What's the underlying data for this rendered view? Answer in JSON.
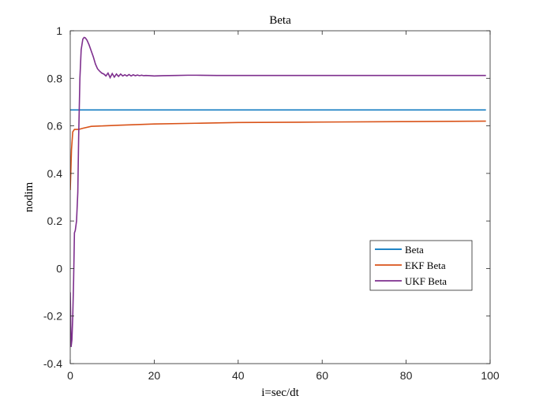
{
  "chart_data": {
    "type": "line",
    "title": "Beta",
    "xlabel": "i=sec/dt",
    "ylabel": "nodim",
    "xlim": [
      0,
      100
    ],
    "ylim": [
      -0.4,
      1
    ],
    "x_ticks": [
      0,
      20,
      40,
      60,
      80,
      100
    ],
    "y_ticks": [
      -0.4,
      -0.2,
      0,
      0.2,
      0.4,
      0.6,
      0.8,
      1
    ],
    "grid": false,
    "legend_position": "lower-right",
    "series": [
      {
        "name": "Beta",
        "color": "#0072BD",
        "x": [
          0,
          99
        ],
        "y": [
          0.667,
          0.667
        ]
      },
      {
        "name": "EKF Beta",
        "color": "#D95319",
        "x": [
          0,
          0.3,
          0.6,
          1,
          1.5,
          2,
          3,
          5,
          8,
          12,
          20,
          30,
          40,
          60,
          80,
          99
        ],
        "y": [
          0.33,
          0.5,
          0.575,
          0.585,
          0.585,
          0.585,
          0.59,
          0.598,
          0.6,
          0.603,
          0.608,
          0.611,
          0.614,
          0.616,
          0.618,
          0.62
        ]
      },
      {
        "name": "UKF Beta",
        "color": "#7E2F8E",
        "x": [
          0,
          0.2,
          0.4,
          0.6,
          0.8,
          1,
          1.2,
          1.5,
          1.8,
          2.0,
          2.3,
          2.6,
          3.0,
          3.3,
          3.6,
          4.0,
          4.5,
          5.0,
          5.5,
          6.0,
          6.5,
          7.0,
          7.5,
          8.0,
          8.5,
          9.0,
          9.5,
          10.0,
          10.5,
          11.0,
          11.5,
          12.0,
          12.5,
          13.0,
          13.5,
          14.0,
          14.5,
          15.0,
          15.5,
          16.0,
          16.5,
          17.0,
          17.5,
          18.0,
          19.0,
          20.0,
          22.0,
          25.0,
          28.0,
          30.0,
          35.0,
          40.0,
          60.0,
          80.0,
          99.0
        ],
        "y": [
          -0.1,
          -0.33,
          -0.3,
          -0.2,
          -0.05,
          0.15,
          0.16,
          0.2,
          0.32,
          0.55,
          0.8,
          0.92,
          0.965,
          0.972,
          0.97,
          0.96,
          0.94,
          0.915,
          0.89,
          0.86,
          0.84,
          0.83,
          0.822,
          0.818,
          0.81,
          0.822,
          0.803,
          0.82,
          0.805,
          0.818,
          0.808,
          0.818,
          0.81,
          0.815,
          0.81,
          0.816,
          0.81,
          0.815,
          0.811,
          0.814,
          0.811,
          0.813,
          0.811,
          0.812,
          0.811,
          0.81,
          0.811,
          0.812,
          0.813,
          0.813,
          0.812,
          0.812,
          0.812,
          0.812,
          0.812
        ]
      }
    ]
  }
}
